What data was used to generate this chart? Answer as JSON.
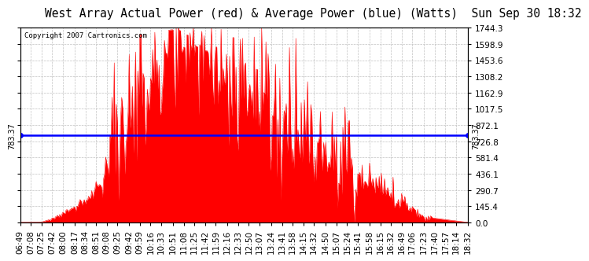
{
  "title": "West Array Actual Power (red) & Average Power (blue) (Watts)  Sun Sep 30 18:32",
  "copyright": "Copyright 2007 Cartronics.com",
  "avg_power": 783.37,
  "ymax": 1744.3,
  "ymin": 0.0,
  "yticks": [
    0.0,
    145.4,
    290.7,
    436.1,
    581.4,
    726.8,
    872.1,
    1017.5,
    1162.9,
    1308.2,
    1453.6,
    1598.9,
    1744.3
  ],
  "ytick_labels_right": [
    "0.0",
    "145.4",
    "290.7",
    "436.1",
    "581.4",
    "726.8",
    "872.1",
    "1017.5",
    "1162.9",
    "1308.2",
    "1453.6",
    "1598.9",
    "1744.3"
  ],
  "xtick_labels": [
    "06:49",
    "07:08",
    "07:25",
    "07:42",
    "08:00",
    "08:17",
    "08:34",
    "08:51",
    "09:08",
    "09:25",
    "09:42",
    "09:59",
    "10:16",
    "10:33",
    "10:51",
    "11:08",
    "11:25",
    "11:42",
    "11:59",
    "12:16",
    "12:33",
    "12:50",
    "13:07",
    "13:24",
    "13:41",
    "13:58",
    "14:15",
    "14:32",
    "14:50",
    "15:07",
    "15:24",
    "15:41",
    "15:58",
    "16:15",
    "16:32",
    "16:49",
    "17:06",
    "17:23",
    "17:40",
    "17:57",
    "18:14",
    "18:32"
  ],
  "fill_color": "#FF0000",
  "line_color": "#FF0000",
  "avg_line_color": "#0000FF",
  "bg_color": "#FFFFFF",
  "grid_color": "#BBBBBB",
  "title_fontsize": 10.5,
  "tick_fontsize": 7.5,
  "avg_label": "783.37"
}
